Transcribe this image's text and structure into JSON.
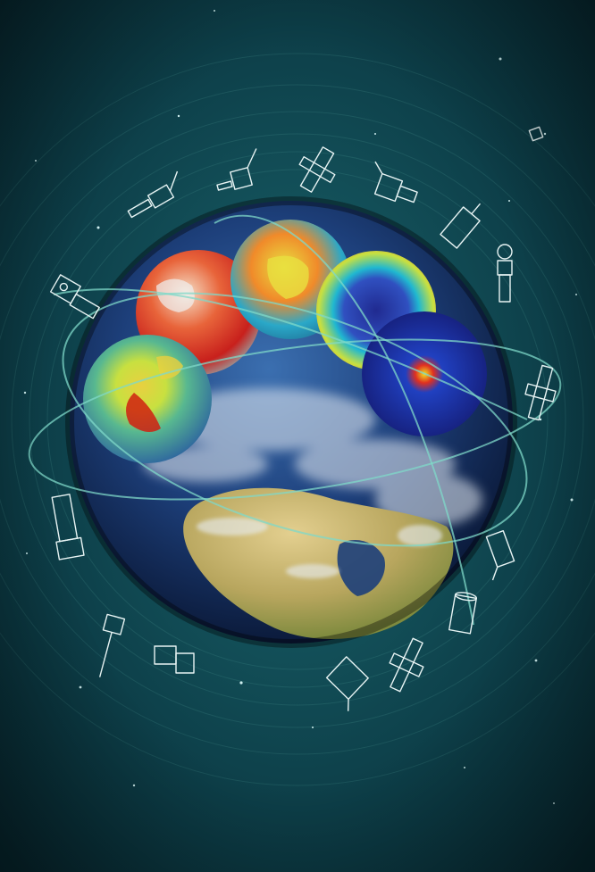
{
  "scene": {
    "description_free": true,
    "colors": {
      "background_center": "#1d6a72",
      "background_edge": "#082c35",
      "orbit": "#7fd8c8",
      "satellite_outline": "#e8f4f4",
      "ocean": "#1d3f7a",
      "land": "#c9b26a"
    },
    "icons": [
      "satellite-icon",
      "satellite-icon",
      "satellite-icon",
      "satellite-icon",
      "satellite-icon",
      "satellite-icon",
      "satellite-icon",
      "satellite-icon",
      "satellite-icon",
      "satellite-icon",
      "satellite-icon",
      "satellite-icon",
      "satellite-icon",
      "satellite-icon",
      "satellite-icon",
      "satellite-icon"
    ],
    "data_globes": [
      {
        "name": "heat-globe",
        "palette": [
          "#f0f0f0",
          "#e8643a",
          "#c8201c"
        ]
      },
      {
        "name": "rainbow-globe",
        "palette": [
          "#2aa8c8",
          "#e8e040",
          "#d02818"
        ]
      },
      {
        "name": "ozone-globe",
        "palette": [
          "#3030a0",
          "#20b8d0",
          "#c8e040"
        ]
      },
      {
        "name": "aerosol-globe",
        "palette": [
          "#141a80",
          "#2040c0",
          "#f0e020"
        ]
      },
      {
        "name": "vegetation-globe",
        "palette": [
          "#2a5ea0",
          "#c8e040",
          "#d02010"
        ]
      }
    ]
  }
}
